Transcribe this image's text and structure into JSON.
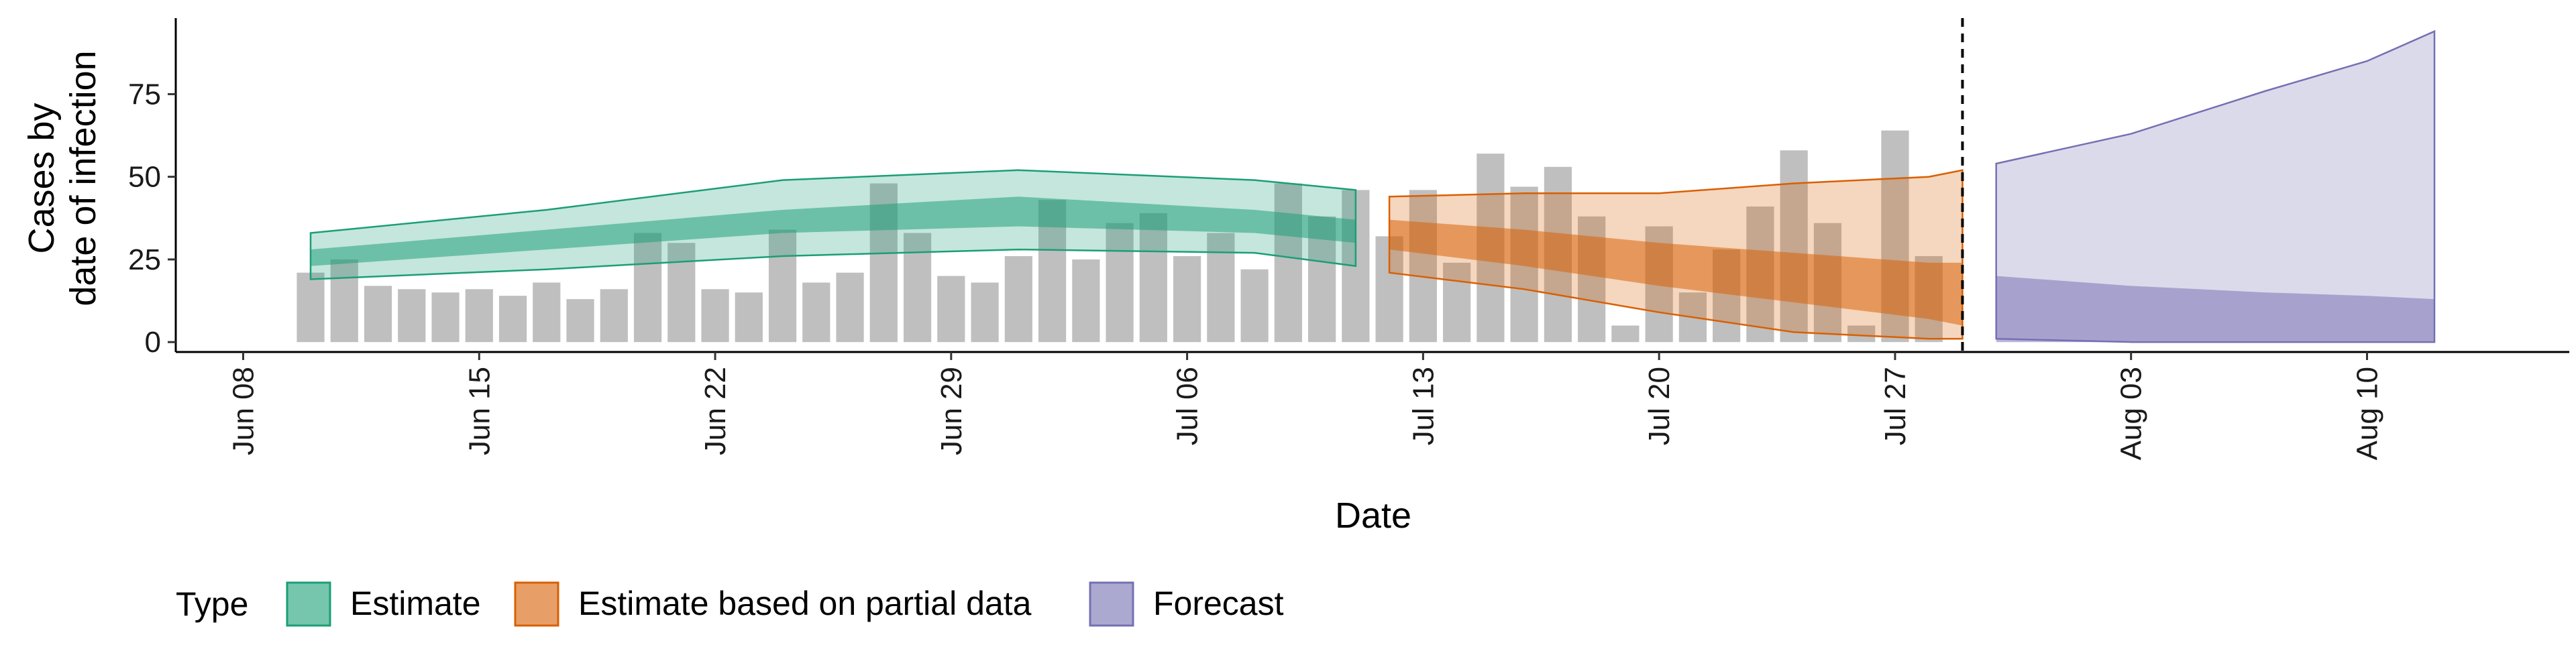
{
  "chart_data": {
    "type": "bar",
    "title": "",
    "xlabel": "Date",
    "ylabel": [
      "Cases by",
      "date of infection"
    ],
    "xlim": [
      "2020-06-06",
      "2020-08-16"
    ],
    "ylim": [
      -3,
      98
    ],
    "yticks": [
      0,
      25,
      50,
      75
    ],
    "xticks": [
      "Jun 08",
      "Jun 15",
      "Jun 22",
      "Jun 29",
      "Jul 06",
      "Jul 13",
      "Jul 20",
      "Jul 27",
      "Aug 03",
      "Aug 10"
    ],
    "xtick_dates": [
      "2020-06-08",
      "2020-06-15",
      "2020-06-22",
      "2020-06-29",
      "2020-07-06",
      "2020-07-13",
      "2020-07-20",
      "2020-07-27",
      "2020-08-03",
      "2020-08-10"
    ],
    "grid": false,
    "vline": {
      "date": "2020-07-29",
      "style": "dashed"
    },
    "reported_cases": {
      "dates": [
        "2020-06-10",
        "2020-06-11",
        "2020-06-12",
        "2020-06-13",
        "2020-06-14",
        "2020-06-15",
        "2020-06-16",
        "2020-06-17",
        "2020-06-18",
        "2020-06-19",
        "2020-06-20",
        "2020-06-21",
        "2020-06-22",
        "2020-06-23",
        "2020-06-24",
        "2020-06-25",
        "2020-06-26",
        "2020-06-27",
        "2020-06-28",
        "2020-06-29",
        "2020-06-30",
        "2020-07-01",
        "2020-07-02",
        "2020-07-03",
        "2020-07-04",
        "2020-07-05",
        "2020-07-06",
        "2020-07-07",
        "2020-07-08",
        "2020-07-09",
        "2020-07-10",
        "2020-07-11",
        "2020-07-12",
        "2020-07-13",
        "2020-07-14",
        "2020-07-15",
        "2020-07-16",
        "2020-07-17",
        "2020-07-18",
        "2020-07-19",
        "2020-07-20",
        "2020-07-21",
        "2020-07-22",
        "2020-07-23",
        "2020-07-24",
        "2020-07-25",
        "2020-07-26",
        "2020-07-27",
        "2020-07-28",
        "2020-07-29"
      ],
      "values": [
        21,
        25,
        17,
        16,
        15,
        16,
        14,
        18,
        13,
        16,
        33,
        30,
        16,
        15,
        34,
        18,
        21,
        48,
        33,
        20,
        18,
        26,
        43,
        25,
        36,
        39,
        26,
        33,
        22,
        48,
        38,
        46,
        32,
        46,
        24,
        57,
        47,
        53,
        38,
        5,
        35,
        15,
        28,
        41,
        58,
        36,
        5,
        64,
        26,
        0
      ]
    },
    "legend": {
      "title": "Type",
      "position": "bottom",
      "entries": [
        "Estimate",
        "Estimate based on partial data",
        "Forecast"
      ]
    },
    "colors": {
      "bars": "#bfbfbf",
      "estimate": "#1b9e77",
      "partial": "#d95f02",
      "forecast": "#7570b3"
    },
    "series": [
      {
        "name": "Estimate",
        "x": [
          "2020-06-10",
          "2020-06-17",
          "2020-06-24",
          "2020-07-01",
          "2020-07-08",
          "2020-07-11"
        ],
        "outer_lower": [
          19,
          22,
          26,
          28,
          27,
          23
        ],
        "outer_upper": [
          33,
          40,
          49,
          52,
          49,
          46
        ],
        "inner_lower": [
          23,
          28,
          33,
          35,
          33,
          30
        ],
        "inner_upper": [
          28,
          34,
          40,
          44,
          40,
          37
        ]
      },
      {
        "name": "Estimate based on partial data",
        "x": [
          "2020-07-12",
          "2020-07-16",
          "2020-07-20",
          "2020-07-24",
          "2020-07-28",
          "2020-07-29"
        ],
        "outer_lower": [
          21,
          16,
          9,
          3,
          1,
          1
        ],
        "outer_upper": [
          44,
          45,
          45,
          48,
          50,
          52
        ],
        "inner_lower": [
          28,
          23,
          17,
          12,
          7,
          5
        ],
        "inner_upper": [
          37,
          34,
          30,
          27,
          24,
          24
        ]
      },
      {
        "name": "Forecast",
        "x": [
          "2020-07-30",
          "2020-08-03",
          "2020-08-07",
          "2020-08-10",
          "2020-08-12"
        ],
        "outer_lower": [
          1,
          0,
          0,
          0,
          0
        ],
        "outer_upper": [
          54,
          63,
          76,
          85,
          94
        ],
        "inner_lower": [
          0,
          0,
          0,
          0,
          0
        ],
        "inner_upper": [
          20,
          17,
          15,
          14,
          13
        ]
      }
    ]
  }
}
